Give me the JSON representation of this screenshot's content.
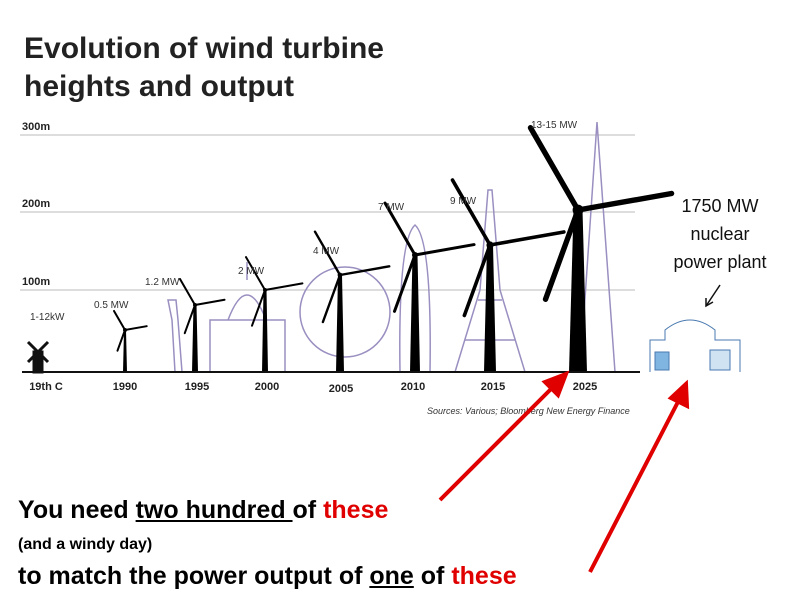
{
  "header": {
    "title_lines": [
      "Evolution of wind turbine",
      "heights and output"
    ]
  },
  "heights": [
    "300m",
    "200m",
    "100m"
  ],
  "eras": [
    "19th C",
    "1990",
    "1995",
    "2000",
    "2005",
    "2010",
    "2015",
    "2025"
  ],
  "outputs": [
    "1-12kW",
    "0.5 MW",
    "1.2 MW",
    "2 MW",
    "4 MW",
    "7 MW",
    "9 MW",
    "13-15 MW"
  ],
  "source": "Sources: Various; Bloomberg New Energy Finance",
  "nuclear": {
    "lines": [
      "1750 MW",
      "nuclear",
      "power plant"
    ]
  },
  "caption": {
    "line1": {
      "a": "You need ",
      "b": "two hundred ",
      "c": "of ",
      "d": "these"
    },
    "line2": "(and a windy day)",
    "line3": {
      "a": "to match the power output of ",
      "b": "one",
      "c": " of ",
      "d": "these"
    }
  }
}
